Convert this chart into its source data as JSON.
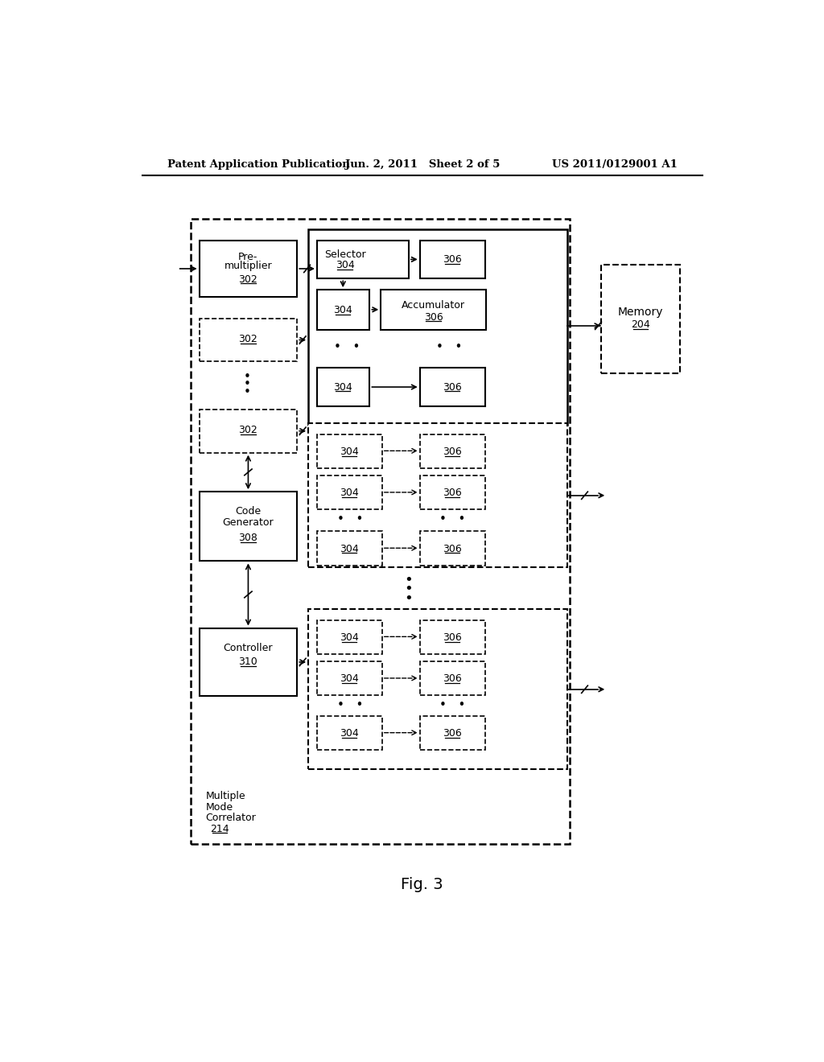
{
  "title_left": "Patent Application Publication",
  "title_mid": "Jun. 2, 2011   Sheet 2 of 5",
  "title_right": "US 2011/0129001 A1",
  "fig_label": "Fig. 3",
  "bg_color": "#ffffff",
  "text_color": "#000000"
}
